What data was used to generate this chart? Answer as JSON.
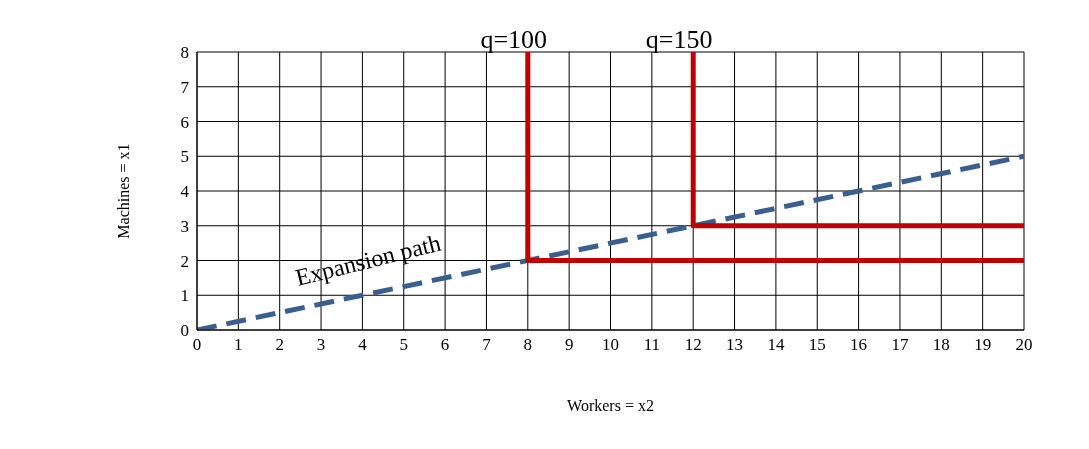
{
  "chart_data": {
    "type": "line",
    "xlabel": "Workers = x2",
    "ylabel": "Machines = x1",
    "xlim": [
      0,
      20
    ],
    "xticks": [
      0,
      1,
      2,
      3,
      4,
      5,
      6,
      7,
      8,
      9,
      10,
      11,
      12,
      13,
      14,
      15,
      16,
      17,
      18,
      19,
      20
    ],
    "ylim": [
      0,
      8
    ],
    "yticks": [
      0,
      1,
      2,
      3,
      4,
      5,
      6,
      7,
      8
    ],
    "grid": true,
    "legend": false,
    "series": [
      {
        "name": "Expansion path",
        "color": "#3a5f8f",
        "x": [
          0,
          20
        ],
        "values": [
          0,
          5
        ],
        "line_style": "dashed"
      },
      {
        "name": "q=100",
        "color": "#c00000",
        "x": [
          8,
          8,
          20
        ],
        "values": [
          8,
          2,
          2
        ],
        "line_style": "solid"
      },
      {
        "name": "q=150",
        "color": "#c00000",
        "x": [
          12,
          12,
          20
        ],
        "values": [
          8,
          3,
          3
        ],
        "line_style": "solid"
      }
    ]
  }
}
